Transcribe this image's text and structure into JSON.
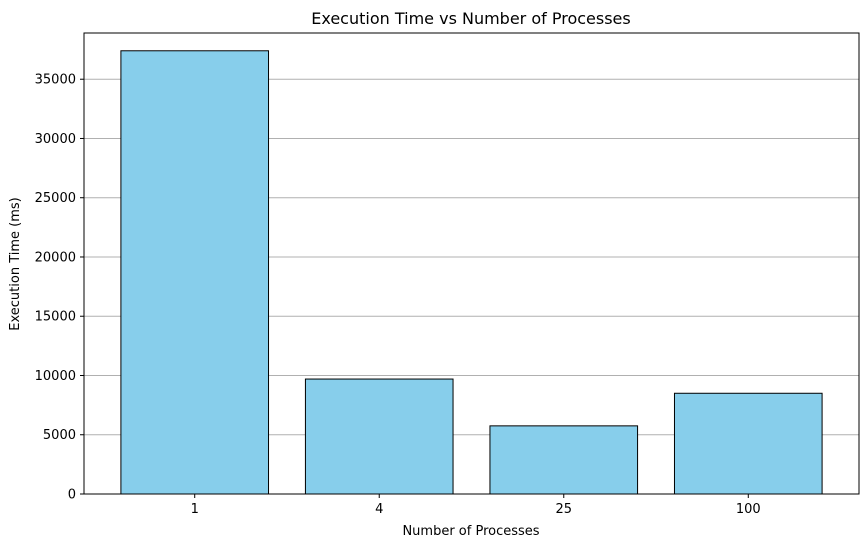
{
  "chart_data": {
    "type": "bar",
    "title": "Execution Time vs Number of Processes",
    "xlabel": "Number of Processes",
    "ylabel": "Execution Time (ms)",
    "categories": [
      "1",
      "4",
      "25",
      "100"
    ],
    "values": [
      37400,
      9700,
      5750,
      8500
    ],
    "ylim": [
      0,
      38900
    ],
    "yticks": [
      0,
      5000,
      10000,
      15000,
      20000,
      25000,
      30000,
      35000
    ],
    "grid": "y-axis only",
    "legend": "none",
    "colors": {
      "bar_fill": "#87ceeb",
      "bar_edge": "#000000",
      "grid": "#b0b0b0",
      "axis": "#000000"
    }
  }
}
